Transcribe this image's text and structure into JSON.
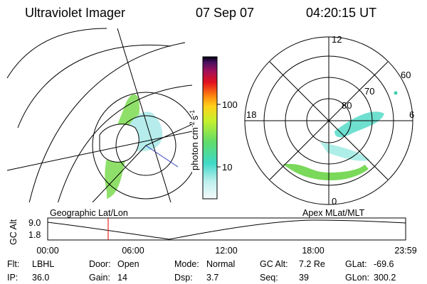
{
  "header": {
    "title": "Ultraviolet Imager",
    "date": "07 Sep 07",
    "time": "04:20:15 UT"
  },
  "colorbar": {
    "label": {
      "base": "photon cm",
      "exp1": "-2",
      "unit2": "s",
      "exp2": "-1"
    },
    "ticks": [
      "100",
      "10"
    ]
  },
  "left_map": {
    "label": "Geographic Lat/Lon"
  },
  "polar_plot": {
    "label": "Apex MLat/MLT",
    "mlt": [
      "12",
      "18",
      "6",
      "0"
    ],
    "mlat": [
      "60",
      "70",
      "80"
    ]
  },
  "altitude_plot": {
    "axis_label": "GC Alt",
    "yticks": [
      "9.0",
      "1.8"
    ],
    "xticks": [
      "00:00",
      "06:00",
      "12:00",
      "18:00",
      "23:59"
    ]
  },
  "footer": {
    "rows": [
      [
        [
          "Flt:",
          "LBHL"
        ],
        [
          "Door:",
          "Open"
        ],
        [
          "Mode:",
          "Normal"
        ],
        [
          "GC Alt:",
          "7.2 Re"
        ],
        [
          "GLat:",
          "-69.6"
        ]
      ],
      [
        [
          "IP:",
          "36.0"
        ],
        [
          "Gain:",
          "14"
        ],
        [
          "Dsp:",
          "3.7"
        ],
        [
          "Seq:",
          "39"
        ],
        [
          "GLon:",
          "300.2"
        ]
      ]
    ]
  }
}
